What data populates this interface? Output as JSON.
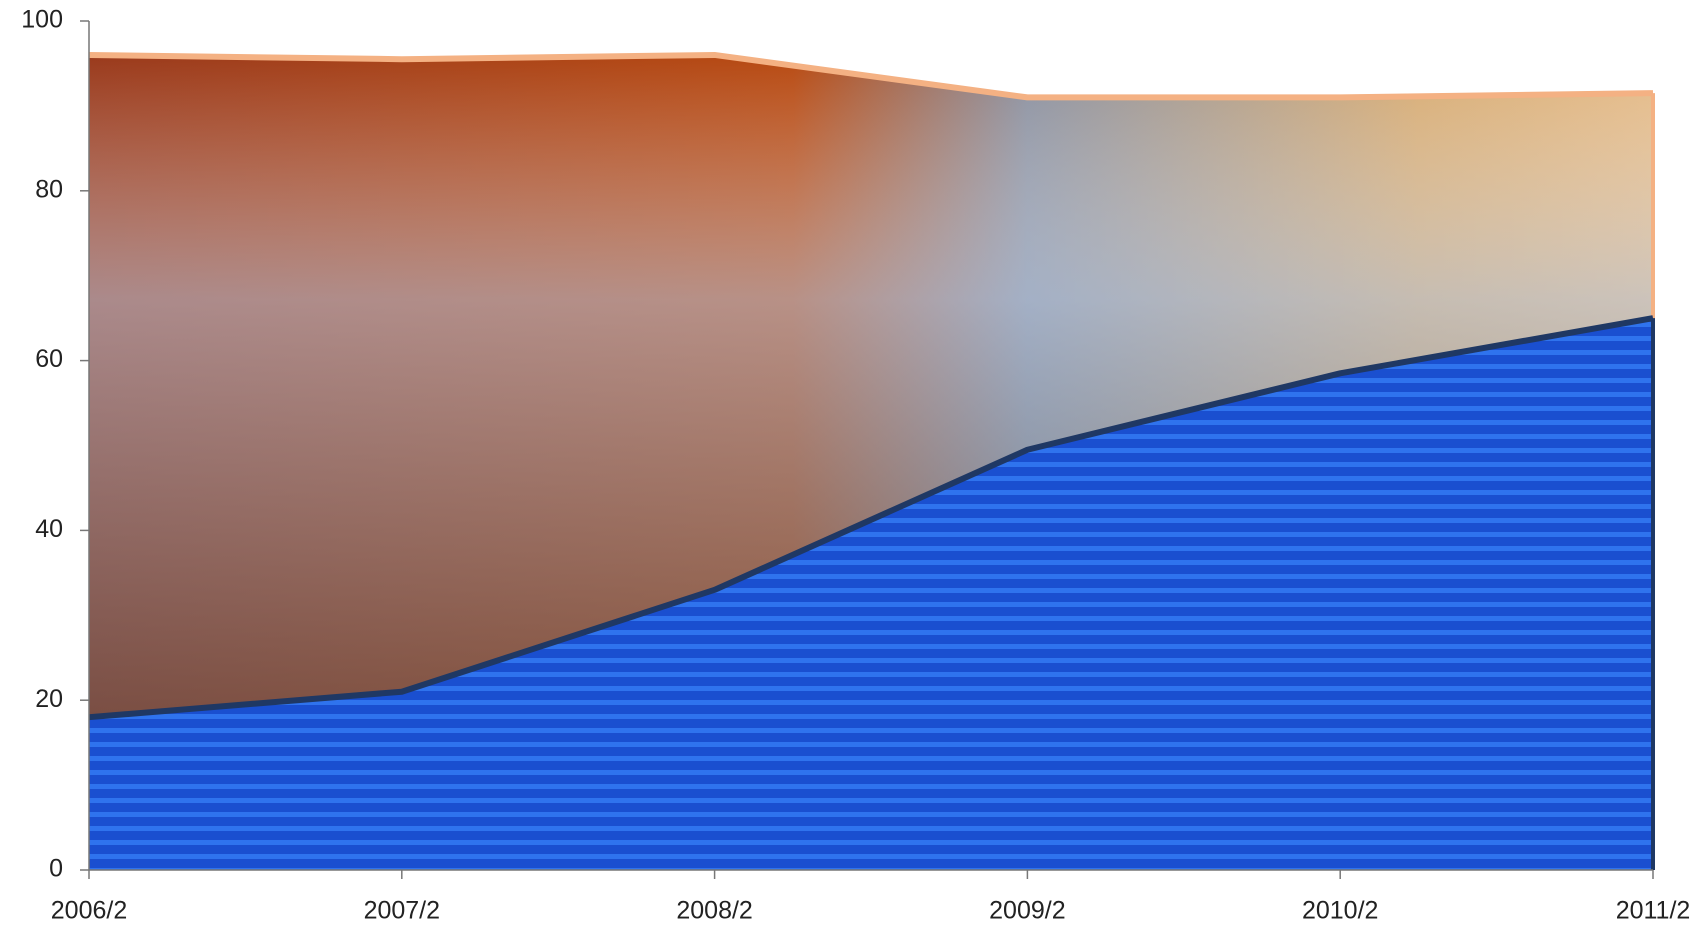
{
  "chart_data": {
    "type": "area",
    "categories": [
      "2006/2",
      "2007/2",
      "2008/2",
      "2009/2",
      "2010/2",
      "2011/2"
    ],
    "series": [
      {
        "color": "#f4b183",
        "values": [
          96,
          95.5,
          96,
          91,
          91,
          91.5
        ]
      },
      {
        "color": "#1f3864",
        "values": [
          18,
          21,
          33,
          49.5,
          58.5,
          65
        ]
      }
    ],
    "ylim": [
      0,
      100
    ],
    "yticks": [
      0,
      20,
      40,
      60,
      80,
      100
    ],
    "grid": false
  }
}
